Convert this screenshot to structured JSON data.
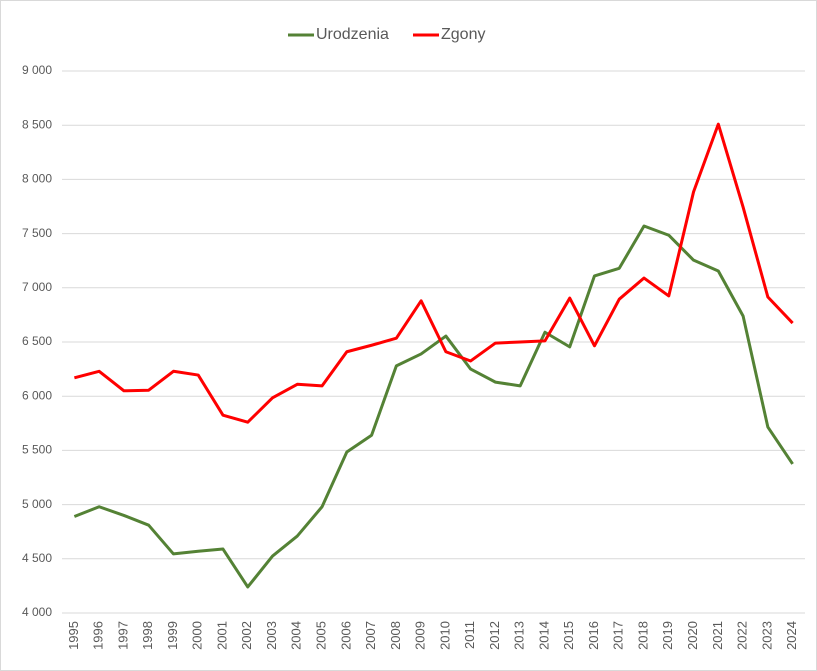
{
  "chart_data": {
    "type": "line",
    "categories": [
      "1995",
      "1996",
      "1997",
      "1998",
      "1999",
      "2000",
      "2001",
      "2002",
      "2003",
      "2004",
      "2005",
      "2006",
      "2007",
      "2008",
      "2009",
      "2010",
      "2011",
      "2012",
      "2013",
      "2014",
      "2015",
      "2016",
      "2017",
      "2018",
      "2019",
      "2020",
      "2021",
      "2022",
      "2023",
      "2024"
    ],
    "series": [
      {
        "name": "Urodzenia",
        "color": "#548235",
        "values": [
          4890,
          4980,
          4900,
          4810,
          4545,
          4570,
          4590,
          4240,
          4525,
          4710,
          4980,
          5485,
          5640,
          6280,
          6390,
          6555,
          6250,
          6130,
          6095,
          6590,
          6455,
          7110,
          7180,
          7570,
          7485,
          7255,
          7155,
          6740,
          5715,
          5375
        ]
      },
      {
        "name": "Zgony",
        "color": "#ff0000",
        "values": [
          6170,
          6230,
          6050,
          6055,
          6230,
          6195,
          5825,
          5760,
          5985,
          6110,
          6095,
          6410,
          6470,
          6535,
          6880,
          6410,
          6325,
          6490,
          6500,
          6510,
          6905,
          6465,
          6895,
          7090,
          6925,
          7885,
          8510,
          7745,
          6915,
          6675
        ]
      }
    ],
    "ylim": [
      4000,
      9000
    ],
    "yticks": [
      {
        "value": 4000,
        "label": "4 000"
      },
      {
        "value": 4500,
        "label": "4 500"
      },
      {
        "value": 5000,
        "label": "5 000"
      },
      {
        "value": 5500,
        "label": "5 500"
      },
      {
        "value": 6000,
        "label": "6 000"
      },
      {
        "value": 6500,
        "label": "6 500"
      },
      {
        "value": 7000,
        "label": "7 000"
      },
      {
        "value": 7500,
        "label": "7 500"
      },
      {
        "value": 8000,
        "label": "8 000"
      },
      {
        "value": 8500,
        "label": "8 500"
      },
      {
        "value": 9000,
        "label": "9 000"
      }
    ],
    "grid": true,
    "legend": "top"
  }
}
